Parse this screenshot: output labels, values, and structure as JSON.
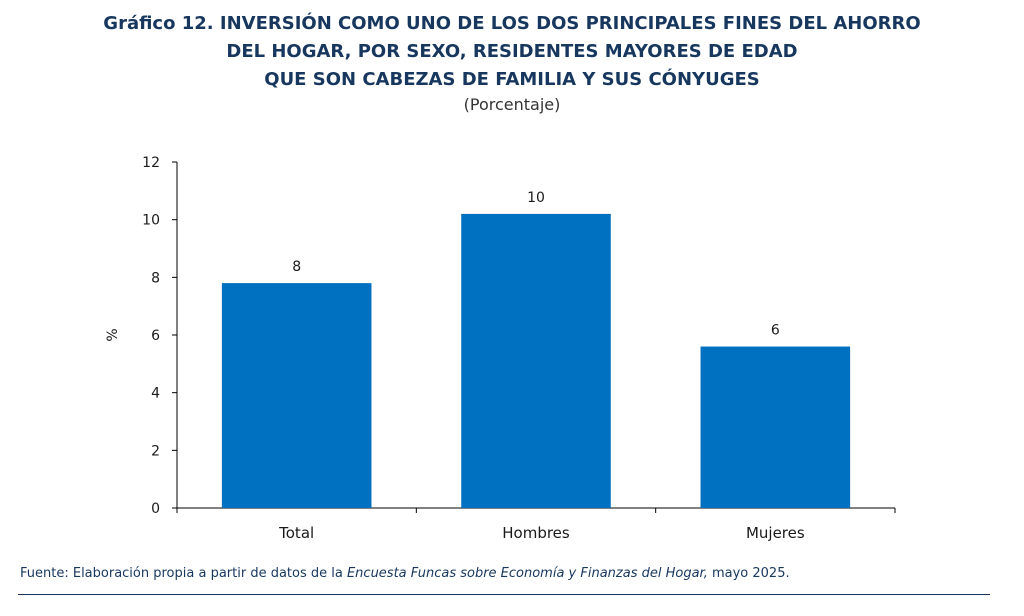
{
  "title_lines": [
    "Gráfico 12. INVERSIÓN COMO UNO DE LOS DOS PRINCIPALES FINES DEL AHORRO",
    "DEL HOGAR, POR SEXO, RESIDENTES MAYORES DE EDAD",
    "QUE SON CABEZAS DE FAMILIA Y SUS CÓNYUGES"
  ],
  "subtitle": "(Porcentaje)",
  "source": {
    "prefix": "Fuente: Elaboración propia a partir de datos de la ",
    "italic": "Encuesta Funcas sobre Economía y Finanzas del Hogar,",
    "suffix": " mayo 2025."
  },
  "colors": {
    "bar": "#0070c0",
    "title": "#17375e"
  },
  "chart_data": {
    "type": "bar",
    "categories": [
      "Total",
      "Hombres",
      "Mujeres"
    ],
    "values": [
      7.8,
      10.2,
      5.6
    ],
    "data_labels": [
      "8",
      "10",
      "6"
    ],
    "ylabel": "%",
    "ylim": [
      0,
      12
    ],
    "yticks": [
      "0",
      "2",
      "4",
      "6",
      "8",
      "10",
      "12"
    ],
    "grid": false,
    "legend": "none"
  }
}
